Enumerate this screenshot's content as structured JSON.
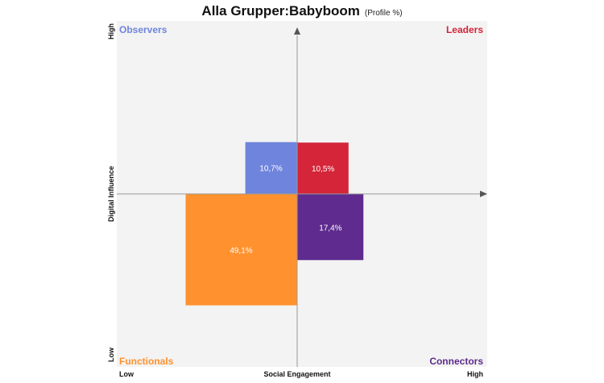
{
  "title": "Alla Grupper:Babyboom",
  "subtitle": "(Profile %)",
  "chart_data": {
    "type": "quadrant",
    "x_axis": {
      "label": "Social Engagement",
      "low": "Low",
      "high": "High"
    },
    "y_axis": {
      "label": "Digital Influence",
      "low": "Low",
      "high": "High"
    },
    "quadrants": [
      {
        "name": "Observers",
        "position": "top-left",
        "value": 10.7,
        "label": "10,7%",
        "color": "#6f84dc",
        "label_color": "#6f84dc"
      },
      {
        "name": "Leaders",
        "position": "top-right",
        "value": 10.5,
        "label": "10,5%",
        "color": "#d42539",
        "label_color": "#d42539"
      },
      {
        "name": "Functionals",
        "position": "bottom-left",
        "value": 49.1,
        "label": "49,1%",
        "color": "#ff912e",
        "label_color": "#ff912e"
      },
      {
        "name": "Connectors",
        "position": "bottom-right",
        "value": 17.4,
        "label": "17,4%",
        "color": "#5f2b8e",
        "label_color": "#5f2b8e"
      }
    ]
  }
}
